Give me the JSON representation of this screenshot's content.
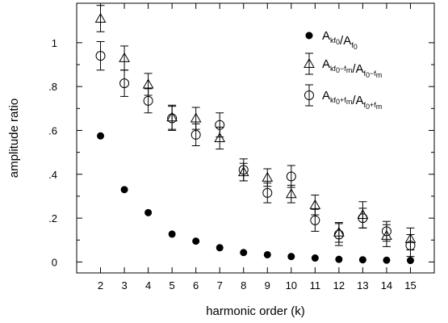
{
  "chart_data": {
    "type": "scatter",
    "xlabel": "harmonic order (k)",
    "ylabel": "amplitude ratio",
    "xlim": [
      1,
      16
    ],
    "ylim": [
      -0.05,
      1.18
    ],
    "xticks": [
      2,
      3,
      4,
      5,
      6,
      7,
      8,
      9,
      10,
      11,
      12,
      13,
      14,
      15
    ],
    "yticks": [
      0,
      0.2,
      0.4,
      0.6,
      0.8,
      1.0
    ],
    "ytick_labels": [
      "0",
      ".2",
      ".4",
      ".6",
      ".8",
      "1"
    ],
    "grid": false,
    "legend_position": "top-right",
    "legend": [
      {
        "marker": "filled-circle",
        "main1": "A",
        "sub1": "kf",
        "subsub1": "0",
        "slash": "/",
        "main2": "A",
        "sub2": "f",
        "subsub2": "0"
      },
      {
        "marker": "triangle",
        "main1": "A",
        "sub1": "kf",
        "subsub1": "0",
        "tail1": "−f",
        "tailsub1": "m",
        "slash": "/",
        "main2": "A",
        "sub2": "f",
        "subsub2": "0",
        "tail2": "−f",
        "tailsub2": "m"
      },
      {
        "marker": "open-circle",
        "main1": "A",
        "sub1": "kf",
        "subsub1": "0",
        "tail1": "+f",
        "tailsub1": "m",
        "slash": "/",
        "main2": "A",
        "sub2": "f",
        "subsub2": "0",
        "tail2": "+f",
        "tailsub2": "m"
      }
    ],
    "series": [
      {
        "marker": "filled-circle",
        "x": [
          2,
          3,
          4,
          5,
          6,
          7,
          8,
          9,
          10,
          11,
          12,
          13,
          14,
          15
        ],
        "y": [
          0.575,
          0.33,
          0.225,
          0.127,
          0.095,
          0.065,
          0.043,
          0.033,
          0.025,
          0.018,
          0.012,
          0.01,
          0.008,
          0.007
        ]
      },
      {
        "marker": "triangle",
        "x": [
          2,
          3,
          4,
          5,
          6,
          7,
          8,
          9,
          10,
          11,
          12,
          13,
          14,
          15
        ],
        "y": [
          1.11,
          0.93,
          0.81,
          0.66,
          0.655,
          0.565,
          0.41,
          0.385,
          0.31,
          0.26,
          0.135,
          0.215,
          0.12,
          0.105
        ],
        "err": [
          0.06,
          0.055,
          0.05,
          0.055,
          0.05,
          0.05,
          0.04,
          0.04,
          0.04,
          0.045,
          0.045,
          0.06,
          0.05,
          0.05
        ]
      },
      {
        "marker": "open-circle",
        "x": [
          2,
          3,
          4,
          5,
          6,
          7,
          8,
          9,
          10,
          11,
          12,
          13,
          14,
          15
        ],
        "y": [
          0.94,
          0.815,
          0.735,
          0.655,
          0.58,
          0.625,
          0.42,
          0.315,
          0.39,
          0.19,
          0.125,
          0.2,
          0.14,
          0.075
        ],
        "err": [
          0.065,
          0.06,
          0.055,
          0.055,
          0.05,
          0.055,
          0.05,
          0.045,
          0.05,
          0.05,
          0.05,
          0.045,
          0.045,
          0.05
        ]
      }
    ]
  }
}
